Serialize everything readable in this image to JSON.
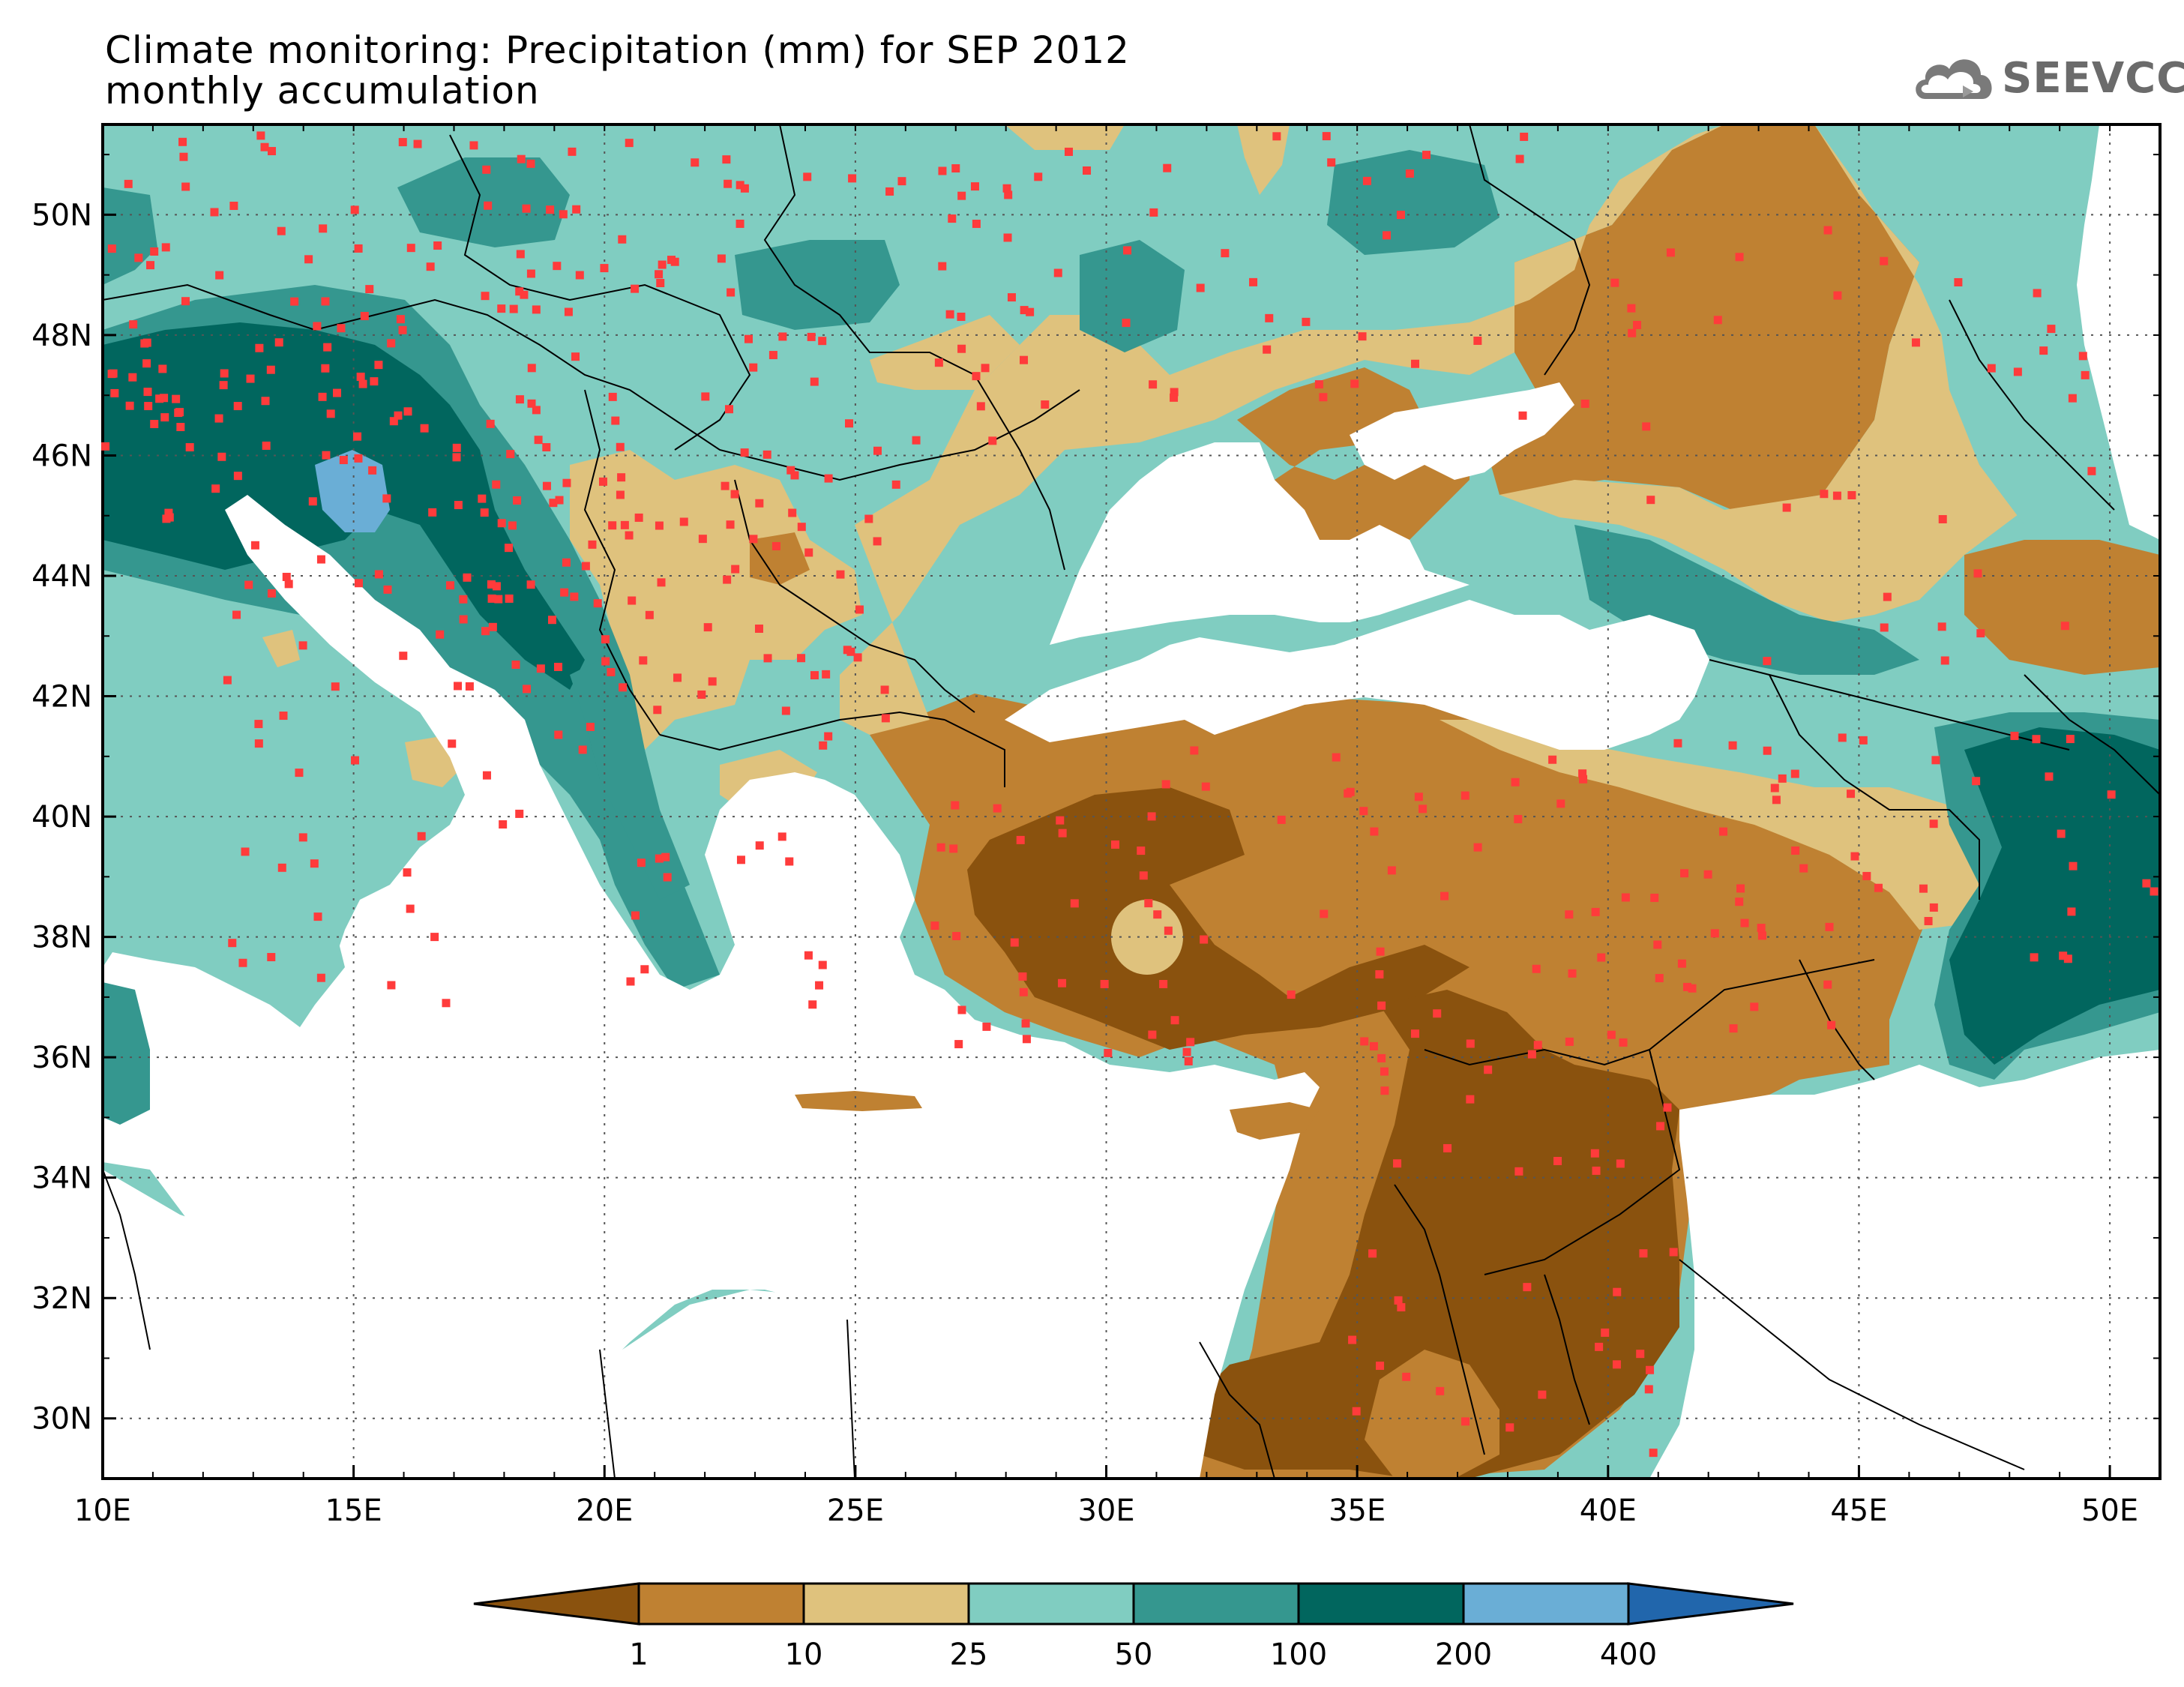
{
  "title": {
    "line1": "Climate monitoring: Precipitation (mm) for SEP 2012",
    "line2": "monthly accumulation"
  },
  "logo": {
    "text": "SEEVCCC",
    "icon": "cloud-icon"
  },
  "map": {
    "lon_range": [
      10,
      51
    ],
    "lat_range": [
      29,
      51.5
    ],
    "lon_ticks": [
      "10E",
      "15E",
      "20E",
      "25E",
      "30E",
      "35E",
      "40E",
      "45E",
      "50E"
    ],
    "lat_ticks": [
      "30N",
      "32N",
      "34N",
      "36N",
      "38N",
      "40N",
      "42N",
      "44N",
      "46N",
      "48N",
      "50N"
    ],
    "lon_tick_values": [
      10,
      15,
      20,
      25,
      30,
      35,
      40,
      45,
      50
    ],
    "lat_tick_values": [
      30,
      32,
      34,
      36,
      38,
      40,
      42,
      44,
      46,
      48,
      50
    ],
    "grid": "dotted",
    "station_marker_color": "#ff3b3b",
    "station_marker": "red squares"
  },
  "colorbar": {
    "labels": [
      "1",
      "10",
      "25",
      "50",
      "100",
      "200",
      "400"
    ],
    "colors": [
      "#8a520e",
      "#bf8132",
      "#dfc27d",
      "#80cdc1",
      "#35978f",
      "#01665e",
      "#6aaed6",
      "#2166ac"
    ],
    "extend": "both"
  }
}
